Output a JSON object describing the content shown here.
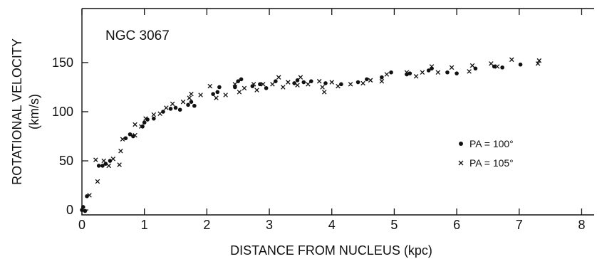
{
  "chart_data": {
    "type": "scatter",
    "title": "NGC 3067",
    "xlabel": "DISTANCE FROM NUCLEUS (kpc)",
    "ylabel_line1": "ROTATIONAL VELOCITY",
    "ylabel_line2": "(km/s)",
    "xlim": [
      0,
      8.2
    ],
    "ylim": [
      -5,
      205
    ],
    "x_ticks": [
      0,
      1,
      2,
      3,
      4,
      5,
      6,
      7,
      8
    ],
    "x_tick_labels": [
      "0",
      "1",
      "2",
      "3",
      "4",
      "5",
      "6",
      "7",
      "8"
    ],
    "y_ticks": [
      0,
      50,
      100,
      150
    ],
    "y_tick_labels": [
      "0",
      "50",
      "100",
      "150"
    ],
    "grid": false,
    "legend_position": "right",
    "series": [
      {
        "name": "PA = 100°",
        "marker": "dot",
        "points": [
          [
            0.0,
            0
          ],
          [
            0.02,
            3
          ],
          [
            0.05,
            -1
          ],
          [
            0.08,
            14
          ],
          [
            0.27,
            45
          ],
          [
            0.33,
            45
          ],
          [
            0.38,
            47
          ],
          [
            0.45,
            50
          ],
          [
            0.7,
            73
          ],
          [
            0.77,
            77
          ],
          [
            0.82,
            75
          ],
          [
            0.97,
            85
          ],
          [
            1.0,
            89
          ],
          [
            1.05,
            92
          ],
          [
            1.15,
            93
          ],
          [
            1.3,
            100
          ],
          [
            1.42,
            103
          ],
          [
            1.5,
            104
          ],
          [
            1.57,
            102
          ],
          [
            1.7,
            107
          ],
          [
            1.75,
            110
          ],
          [
            1.8,
            106
          ],
          [
            2.1,
            118
          ],
          [
            2.17,
            120
          ],
          [
            2.2,
            125
          ],
          [
            2.45,
            125
          ],
          [
            2.5,
            131
          ],
          [
            2.55,
            133
          ],
          [
            2.73,
            126
          ],
          [
            2.85,
            128
          ],
          [
            2.95,
            124
          ],
          [
            3.1,
            131
          ],
          [
            3.4,
            129
          ],
          [
            3.45,
            132
          ],
          [
            3.55,
            130
          ],
          [
            3.67,
            131
          ],
          [
            3.9,
            129
          ],
          [
            4.15,
            128
          ],
          [
            4.42,
            130
          ],
          [
            4.56,
            133
          ],
          [
            4.8,
            135
          ],
          [
            4.95,
            140
          ],
          [
            5.2,
            138
          ],
          [
            5.25,
            139
          ],
          [
            5.55,
            142
          ],
          [
            5.6,
            144
          ],
          [
            5.85,
            140
          ],
          [
            6.0,
            139
          ],
          [
            6.3,
            144
          ],
          [
            6.6,
            146
          ],
          [
            6.73,
            145
          ],
          [
            7.02,
            148
          ]
        ]
      },
      {
        "name": "PA = 105°",
        "marker": "cross",
        "points": [
          [
            0.12,
            15
          ],
          [
            0.22,
            51
          ],
          [
            0.25,
            29
          ],
          [
            0.35,
            50
          ],
          [
            0.43,
            45
          ],
          [
            0.5,
            52
          ],
          [
            0.6,
            46
          ],
          [
            0.62,
            60
          ],
          [
            0.65,
            72
          ],
          [
            0.85,
            76
          ],
          [
            0.85,
            87
          ],
          [
            0.95,
            85
          ],
          [
            1.02,
            93
          ],
          [
            1.15,
            97
          ],
          [
            1.25,
            98
          ],
          [
            1.35,
            104
          ],
          [
            1.45,
            108
          ],
          [
            1.62,
            110
          ],
          [
            1.72,
            114
          ],
          [
            1.75,
            118
          ],
          [
            1.9,
            117
          ],
          [
            2.05,
            126
          ],
          [
            2.15,
            114
          ],
          [
            2.3,
            117
          ],
          [
            2.45,
            128
          ],
          [
            2.52,
            120
          ],
          [
            2.6,
            124
          ],
          [
            2.75,
            128
          ],
          [
            2.8,
            122
          ],
          [
            2.9,
            128
          ],
          [
            3.05,
            128
          ],
          [
            3.15,
            135
          ],
          [
            3.22,
            125
          ],
          [
            3.3,
            130
          ],
          [
            3.45,
            127
          ],
          [
            3.5,
            135
          ],
          [
            3.62,
            128
          ],
          [
            3.8,
            131
          ],
          [
            3.85,
            125
          ],
          [
            3.88,
            120
          ],
          [
            4.0,
            130
          ],
          [
            4.1,
            126
          ],
          [
            4.3,
            128
          ],
          [
            4.5,
            129
          ],
          [
            4.62,
            132
          ],
          [
            4.8,
            131
          ],
          [
            4.88,
            138
          ],
          [
            5.2,
            140
          ],
          [
            5.35,
            136
          ],
          [
            5.45,
            140
          ],
          [
            5.6,
            146
          ],
          [
            5.7,
            140
          ],
          [
            5.92,
            145
          ],
          [
            6.2,
            141
          ],
          [
            6.25,
            147
          ],
          [
            6.55,
            149
          ],
          [
            6.65,
            146
          ],
          [
            6.88,
            153
          ],
          [
            7.3,
            149
          ],
          [
            7.32,
            152
          ]
        ]
      }
    ]
  }
}
